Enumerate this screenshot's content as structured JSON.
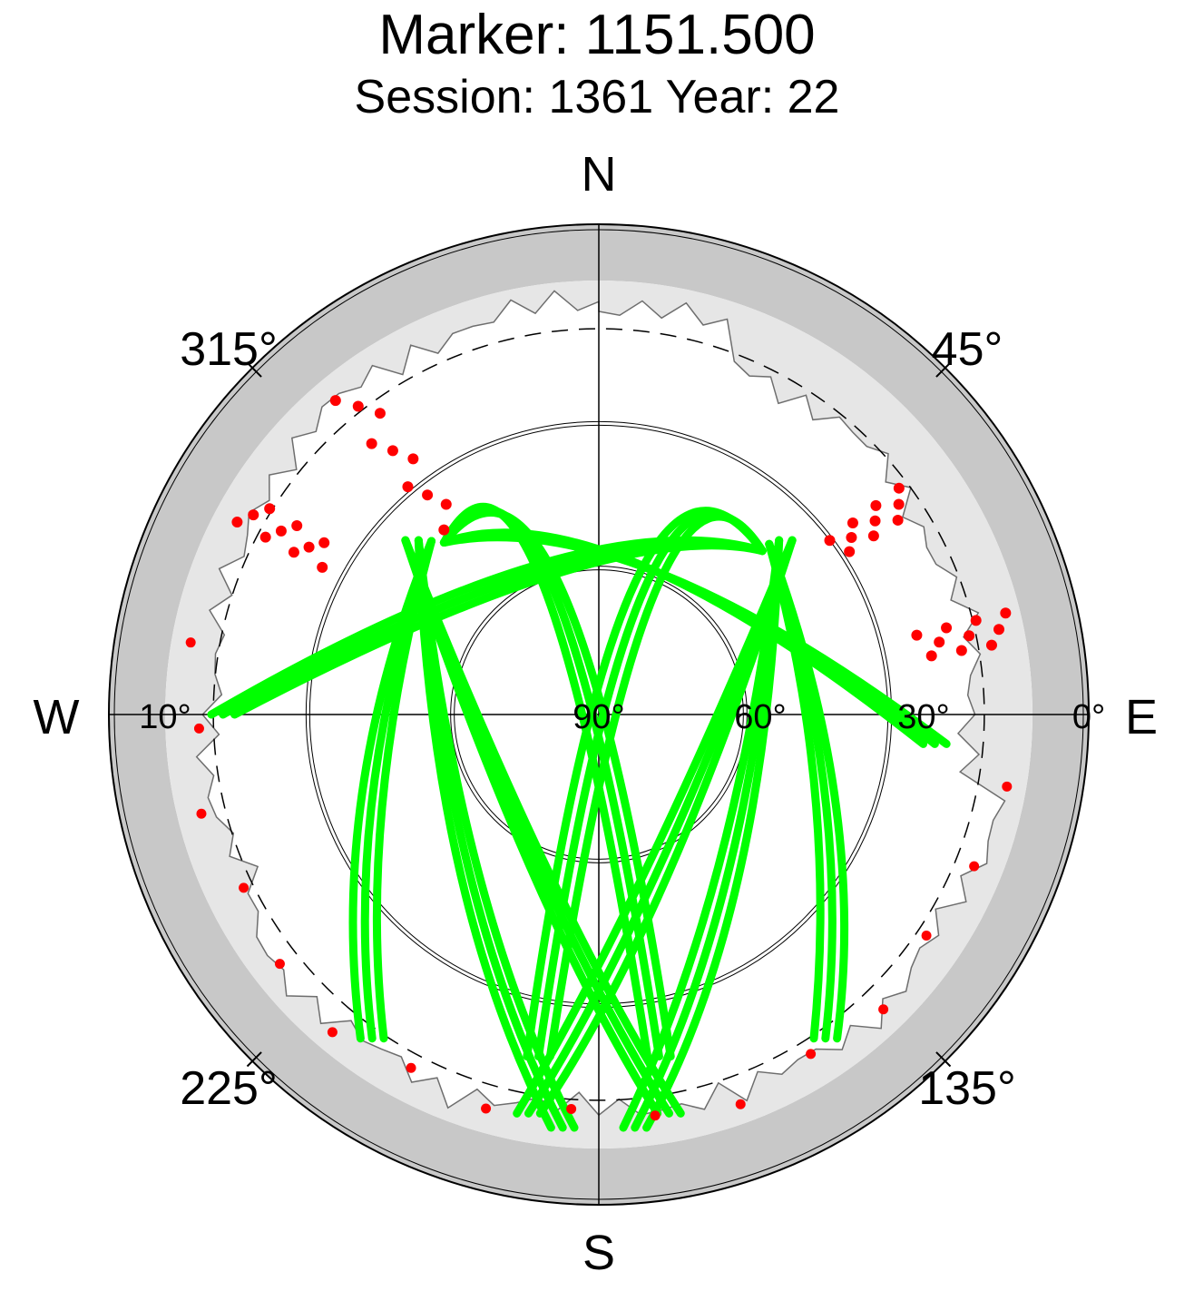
{
  "chart_data": {
    "type": "scatter",
    "projection": "polar-skyplot",
    "title": "Marker: 1151.500",
    "subtitle": "Session: 1361 Year: 22",
    "directions": {
      "north": "N",
      "east": "E",
      "south": "S",
      "west": "W"
    },
    "azimuth_labels": [
      "45°",
      "135°",
      "225°",
      "315°"
    ],
    "elevation_labels": [
      "0°",
      "30°",
      "60°",
      "90°",
      "10°"
    ],
    "elevation_circles": [
      0,
      10,
      30,
      60
    ],
    "colors": {
      "background_ring": "#c8c8c8",
      "obstruction_mask": "#e6e6e6",
      "tracked": "#00ff00",
      "flagged": "#ff0000",
      "grid": "#000000"
    },
    "series": [
      {
        "color": "#00ff00",
        "tracks": [
          {
            "az_start": 318,
            "el_start": 42,
            "az_peak": 20,
            "el_peak": 58,
            "az_end": 95,
            "el_end": 20
          },
          {
            "az_start": 318,
            "el_start": 42,
            "az_peak": 340,
            "el_peak": 62,
            "az_end": 170,
            "el_end": 18
          },
          {
            "az_start": 316,
            "el_start": 40,
            "az_peak": 250,
            "el_peak": 40,
            "az_end": 215,
            "el_end": 8
          },
          {
            "az_start": 314,
            "el_start": 38,
            "az_peak": 220,
            "el_peak": 48,
            "az_end": 185,
            "el_end": 4
          },
          {
            "az_start": 312,
            "el_start": 36,
            "az_peak": 200,
            "el_peak": 55,
            "az_end": 170,
            "el_end": 6
          },
          {
            "az_start": 45,
            "el_start": 42,
            "az_peak": 340,
            "el_peak": 58,
            "az_end": 270,
            "el_end": 12
          },
          {
            "az_start": 45,
            "el_start": 42,
            "az_peak": 20,
            "el_peak": 62,
            "az_end": 190,
            "el_end": 18
          },
          {
            "az_start": 45,
            "el_start": 40,
            "az_peak": 110,
            "el_peak": 40,
            "az_end": 145,
            "el_end": 8
          },
          {
            "az_start": 46,
            "el_start": 38,
            "az_peak": 140,
            "el_peak": 48,
            "az_end": 175,
            "el_end": 4
          },
          {
            "az_start": 48,
            "el_start": 36,
            "az_peak": 160,
            "el_peak": 55,
            "az_end": 190,
            "el_end": 6
          }
        ]
      },
      {
        "color": "#ff0000",
        "clusters": [
          {
            "az": 322,
            "el_min": 5,
            "el_max": 40
          },
          {
            "az": 300,
            "el_min": 5,
            "el_max": 25
          },
          {
            "az": 55,
            "el_min": 12,
            "el_max": 30
          },
          {
            "az": 78,
            "el_min": 3,
            "el_max": 22
          }
        ]
      }
    ]
  }
}
